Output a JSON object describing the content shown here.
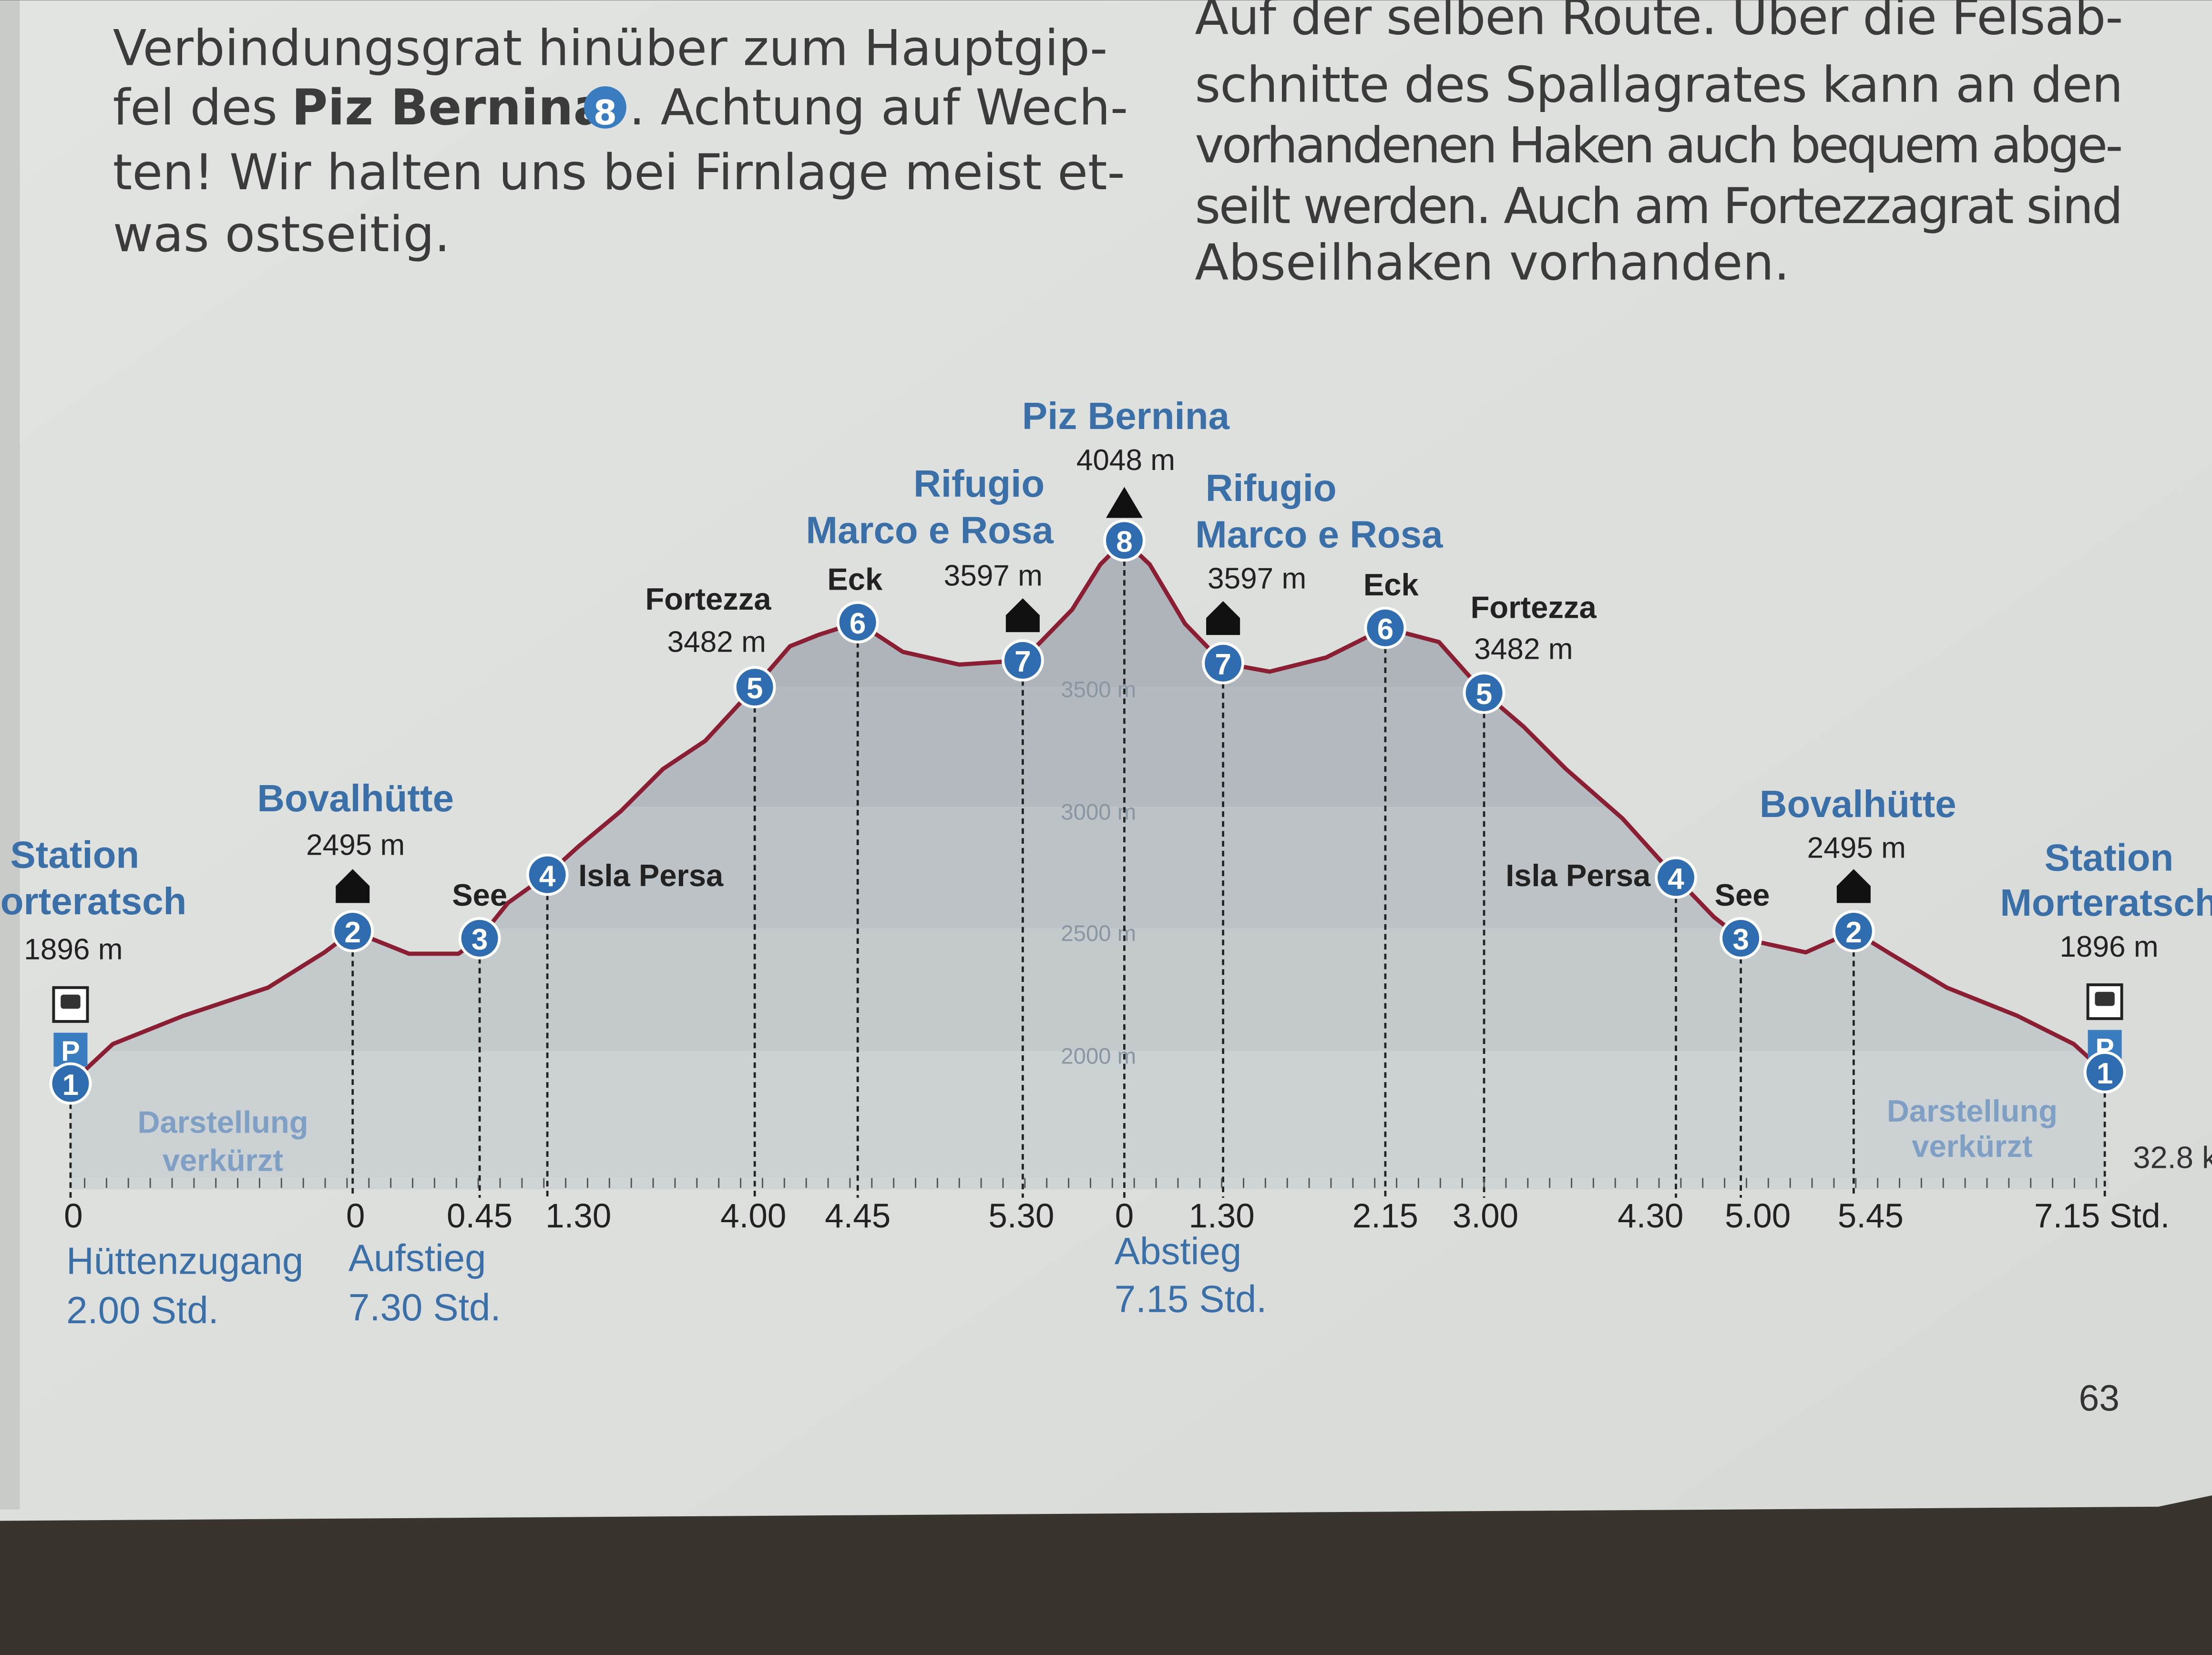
{
  "text": {
    "left": {
      "line1": "Verbindungsgrat hinüber zum Hauptgip-",
      "line2": {
        "before": "fel des",
        "bold": "Piz Bernina",
        "badge": "8",
        "after": ". Achtung auf Wech-"
      },
      "line3": "ten! Wir halten uns bei Firnlage meist et-",
      "line4": "was ostseitig."
    },
    "right": [
      "Auf der selben Route. Über die Felsab-",
      "schnitte des Spallagrates kann an den",
      "vorhandenen Haken auch bequem abge-",
      "seilt werden. Auch am Fortezzagrat sind",
      "Abseilhaken vorhanden."
    ]
  },
  "profile": {
    "waypoints": [
      {
        "number": "1",
        "name": [
          "Station",
          "Morteratsch"
        ],
        "elevation": "1896 m"
      },
      {
        "number": "2",
        "name": [
          "Bovalhütte"
        ],
        "elevation": "2495 m"
      },
      {
        "number": "3",
        "name": [
          "See"
        ]
      },
      {
        "number": "4",
        "name": [
          "Isla Persa"
        ]
      },
      {
        "number": "5",
        "name": [
          "Fortezza"
        ],
        "elevation": "3482 m"
      },
      {
        "number": "6",
        "name": [
          "Eck"
        ]
      },
      {
        "number": "7",
        "name": [
          "Rifugio",
          "Marco e Rosa"
        ],
        "elevation": "3597 m"
      },
      {
        "number": "8",
        "name": [
          "Piz Bernina"
        ],
        "elevation": "4048 m"
      },
      {
        "number": "7",
        "name": [
          "Rifugio",
          "Marco e Rosa"
        ],
        "elevation": "3597 m"
      },
      {
        "number": "6",
        "name": [
          "Eck"
        ]
      },
      {
        "number": "5",
        "name": [
          "Fortezza"
        ],
        "elevation": "3482 m"
      },
      {
        "number": "4",
        "name": [
          "Isla Persa"
        ]
      },
      {
        "number": "3",
        "name": [
          "See"
        ]
      },
      {
        "number": "2",
        "name": [
          "Bovalhütte"
        ],
        "elevation": "2495 m"
      },
      {
        "number": "1",
        "name": [
          "Station",
          "Morteratsch"
        ],
        "elevation": "1896 m"
      }
    ],
    "parking_icon": "P",
    "elevation_labels": [
      "3500 m",
      "3000 m",
      "2500 m",
      "2000 m"
    ],
    "time_labels": [
      "0",
      "0",
      "0.45",
      "1.30",
      "4.00",
      "4.45",
      "5.30",
      "0",
      "1.30",
      "2.15",
      "3.00",
      "4.30",
      "5.00",
      "5.45",
      "7.15 Std."
    ],
    "sections": [
      {
        "name": "Hüttenzugang",
        "duration": "2.00 Std."
      },
      {
        "name": "Aufstieg",
        "duration": "7.30 Std."
      },
      {
        "name": "Abstieg",
        "duration": "7.15 Std."
      }
    ],
    "note": [
      "Darstellung",
      "verkürzt"
    ],
    "distance": "32.8 k"
  },
  "page_number": "63"
}
